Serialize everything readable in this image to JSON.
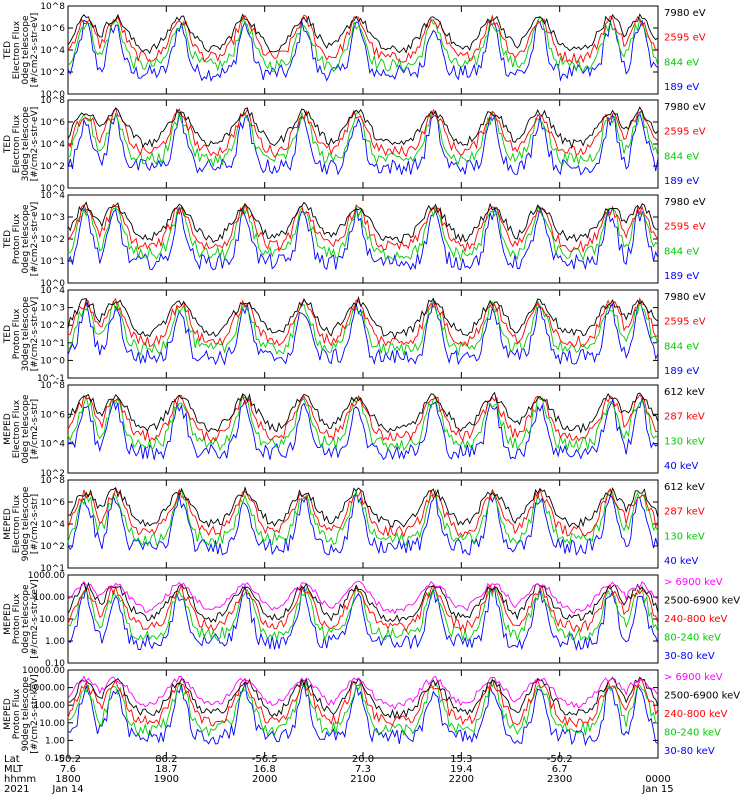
{
  "chart_data": {
    "type": "line",
    "time_axis": {
      "rows": [
        {
          "label": "Lat",
          "values": [
            "-50.2",
            "86.2",
            "-56.5",
            "20.0",
            "15.3",
            "-50.2",
            ""
          ]
        },
        {
          "label": "MLT",
          "values": [
            "7.6",
            "18.7",
            "16.8",
            "7.3",
            "19.4",
            "6.7",
            ""
          ]
        },
        {
          "label": "hhmm",
          "values": [
            "1800",
            "1900",
            "2000",
            "2100",
            "2200",
            "2300",
            "0000"
          ]
        },
        {
          "label": "2021",
          "values": [
            "Jan 14",
            "",
            "",
            "",
            "",
            "",
            "Jan 15"
          ]
        }
      ]
    },
    "panels": [
      {
        "ylabel": [
          "TED",
          "Electron Flux",
          "0deg telescope",
          "[#/cm2-s-str-eV]"
        ],
        "y_log_range": [
          0,
          8
        ],
        "y_tick_labels": [
          "10^0",
          "10^2",
          "10^4",
          "10^6",
          "10^8"
        ],
        "legend": [
          {
            "text": "7980 eV",
            "color": "#000000"
          },
          {
            "text": "2595 eV",
            "color": "#ff0000"
          },
          {
            "text": "844 eV",
            "color": "#00cc00"
          },
          {
            "text": "189 eV",
            "color": "#0000ff"
          }
        ]
      },
      {
        "ylabel": [
          "TED",
          "Electron Flux",
          "30deg telescope",
          "[#/cm2-s-str-eV]"
        ],
        "y_log_range": [
          0,
          8
        ],
        "y_tick_labels": [
          "10^0",
          "10^2",
          "10^4",
          "10^6",
          "10^8"
        ],
        "legend": [
          {
            "text": "7980 eV",
            "color": "#000000"
          },
          {
            "text": "2595 eV",
            "color": "#ff0000"
          },
          {
            "text": "844 eV",
            "color": "#00cc00"
          },
          {
            "text": "189 eV",
            "color": "#0000ff"
          }
        ]
      },
      {
        "ylabel": [
          "TED",
          "Proton Flux",
          "0deg telescope",
          "[#/cm2-s-str-eV]"
        ],
        "y_log_range": [
          0,
          4
        ],
        "y_tick_labels": [
          "10^0",
          "10^1",
          "10^2",
          "10^3",
          "10^4"
        ],
        "legend": [
          {
            "text": "7980 eV",
            "color": "#000000"
          },
          {
            "text": "2595 eV",
            "color": "#ff0000"
          },
          {
            "text": "844 eV",
            "color": "#00cc00"
          },
          {
            "text": "189 eV",
            "color": "#0000ff"
          }
        ]
      },
      {
        "ylabel": [
          "TED",
          "Proton Flux",
          "30deg telescope",
          "[#/cm2-s-str-eV]"
        ],
        "y_log_range": [
          -1,
          4
        ],
        "y_tick_labels": [
          "10^-1",
          "10^0",
          "10^1",
          "10^2",
          "10^3",
          "10^4"
        ],
        "legend": [
          {
            "text": "7980 eV",
            "color": "#000000"
          },
          {
            "text": "2595 eV",
            "color": "#ff0000"
          },
          {
            "text": "844 eV",
            "color": "#00cc00"
          },
          {
            "text": "189 eV",
            "color": "#0000ff"
          }
        ]
      },
      {
        "ylabel": [
          "MEPED",
          "Electron Flux",
          "0deg telescope",
          "[#/cm2-s-str]"
        ],
        "y_log_range": [
          1,
          8
        ],
        "y_tick_labels": [
          "10^2",
          "10^4",
          "10^6",
          "10^8"
        ],
        "legend": [
          {
            "text": "612 keV",
            "color": "#000000"
          },
          {
            "text": "287 keV",
            "color": "#ff0000"
          },
          {
            "text": "130 keV",
            "color": "#00cc00"
          },
          {
            "text": "40 keV",
            "color": "#0000ff"
          }
        ]
      },
      {
        "ylabel": [
          "MEPED",
          "Electron Flux",
          "90deg telescope",
          "[#/cm2-s-str]"
        ],
        "y_log_range": [
          1,
          8
        ],
        "y_tick_labels": [
          "10^1",
          "10^2",
          "10^4",
          "10^6",
          "10^8"
        ],
        "legend": [
          {
            "text": "612 keV",
            "color": "#000000"
          },
          {
            "text": "287 keV",
            "color": "#ff0000"
          },
          {
            "text": "130 keV",
            "color": "#00cc00"
          },
          {
            "text": "40 keV",
            "color": "#0000ff"
          }
        ]
      },
      {
        "ylabel": [
          "MEPED",
          "Proton Flux",
          "0deg telescope",
          "[#/cm2-s-str-keV]"
        ],
        "y_log_range": [
          -2,
          3
        ],
        "y_tick_labels": [
          "0.10",
          "1.00",
          "10.00",
          "100.00",
          "1000.00"
        ],
        "legend": [
          {
            "text": "> 6900 keV",
            "color": "#ff00ff"
          },
          {
            "text": "2500-6900 keV",
            "color": "#000000"
          },
          {
            "text": "240-800 keV",
            "color": "#ff0000"
          },
          {
            "text": "80-240 keV",
            "color": "#00cc00"
          },
          {
            "text": "30-80 keV",
            "color": "#0000ff"
          }
        ]
      },
      {
        "ylabel": [
          "MEPED",
          "Proton Flux",
          "90deg telescope",
          "[#/cm2-s-str-keV]"
        ],
        "y_log_range": [
          -2,
          4
        ],
        "y_tick_labels": [
          "0.10",
          "1.00",
          "10.00",
          "100.00",
          "1000.00",
          "10000.00"
        ],
        "legend": [
          {
            "text": "> 6900 keV",
            "color": "#ff00ff"
          },
          {
            "text": "2500-6900 keV",
            "color": "#000000"
          },
          {
            "text": "240-800 keV",
            "color": "#ff0000"
          },
          {
            "text": "80-240 keV",
            "color": "#00cc00"
          },
          {
            "text": "30-80 keV",
            "color": "#0000ff"
          }
        ]
      }
    ]
  }
}
